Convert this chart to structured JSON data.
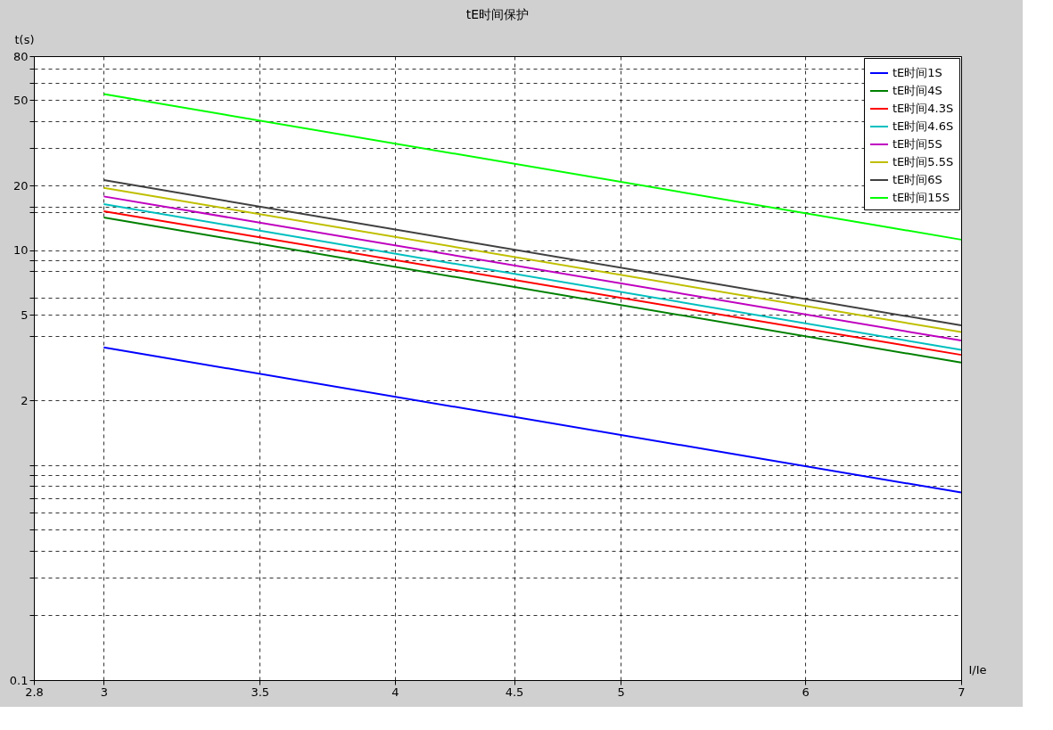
{
  "chart_data": {
    "type": "line",
    "title": "tE时间保护",
    "xlabel": "I/Ie",
    "ylabel": "t(s)",
    "log": "xy",
    "grid": true,
    "legend": "top right",
    "line_style": "solid",
    "marker": "none",
    "x": [
      3,
      7
    ],
    "xlim": [
      2.8,
      7
    ],
    "xticks": [
      2.8,
      3,
      3.5,
      4,
      4.5,
      5,
      6,
      7
    ],
    "ylim": [
      0.1,
      80
    ],
    "yticks": [
      0.1,
      {
        "value": 0.2,
        "label": null
      },
      {
        "value": 0.3,
        "label": null
      },
      {
        "value": 0.4,
        "label": null
      },
      {
        "value": 0.5,
        "label": null
      },
      {
        "value": 0.6,
        "label": null
      },
      {
        "value": 0.7,
        "label": null
      },
      {
        "value": 0.8,
        "label": null
      },
      {
        "value": 0.9,
        "label": null
      },
      {
        "value": 1,
        "label": null
      },
      2,
      {
        "value": 4,
        "label": null
      },
      5,
      {
        "value": 6,
        "label": null
      },
      {
        "value": 8,
        "label": null
      },
      {
        "value": 9,
        "label": null
      },
      10,
      {
        "value": 15,
        "label": null
      },
      {
        "value": 16,
        "label": null
      },
      20,
      {
        "value": 30,
        "label": null
      },
      {
        "value": 40,
        "label": null
      },
      50,
      {
        "value": 60,
        "label": null
      },
      {
        "value": 70,
        "label": null
      },
      80
    ],
    "series": [
      {
        "name": "tE时间1S",
        "color": "#0000ff",
        "values": [
          3.53,
          0.746
        ]
      },
      {
        "name": "tE时间4S",
        "color": "#008000",
        "values": [
          14.2,
          3.0
        ]
      },
      {
        "name": "tE时间4.3S",
        "color": "#ff0000",
        "values": [
          15.2,
          3.26
        ]
      },
      {
        "name": "tE时间4.6S",
        "color": "#00bfbf",
        "values": [
          16.4,
          3.44
        ]
      },
      {
        "name": "tE时间5S",
        "color": "#bf00bf",
        "values": [
          17.8,
          3.8
        ]
      },
      {
        "name": "tE时间5.5S",
        "color": "#bfbf00",
        "values": [
          19.5,
          4.16
        ]
      },
      {
        "name": "tE时间6S",
        "color": "#404040",
        "values": [
          21.2,
          4.47
        ]
      },
      {
        "name": "tE时间15S",
        "color": "#00ff00",
        "values": [
          53.3,
          11.2
        ]
      }
    ]
  }
}
